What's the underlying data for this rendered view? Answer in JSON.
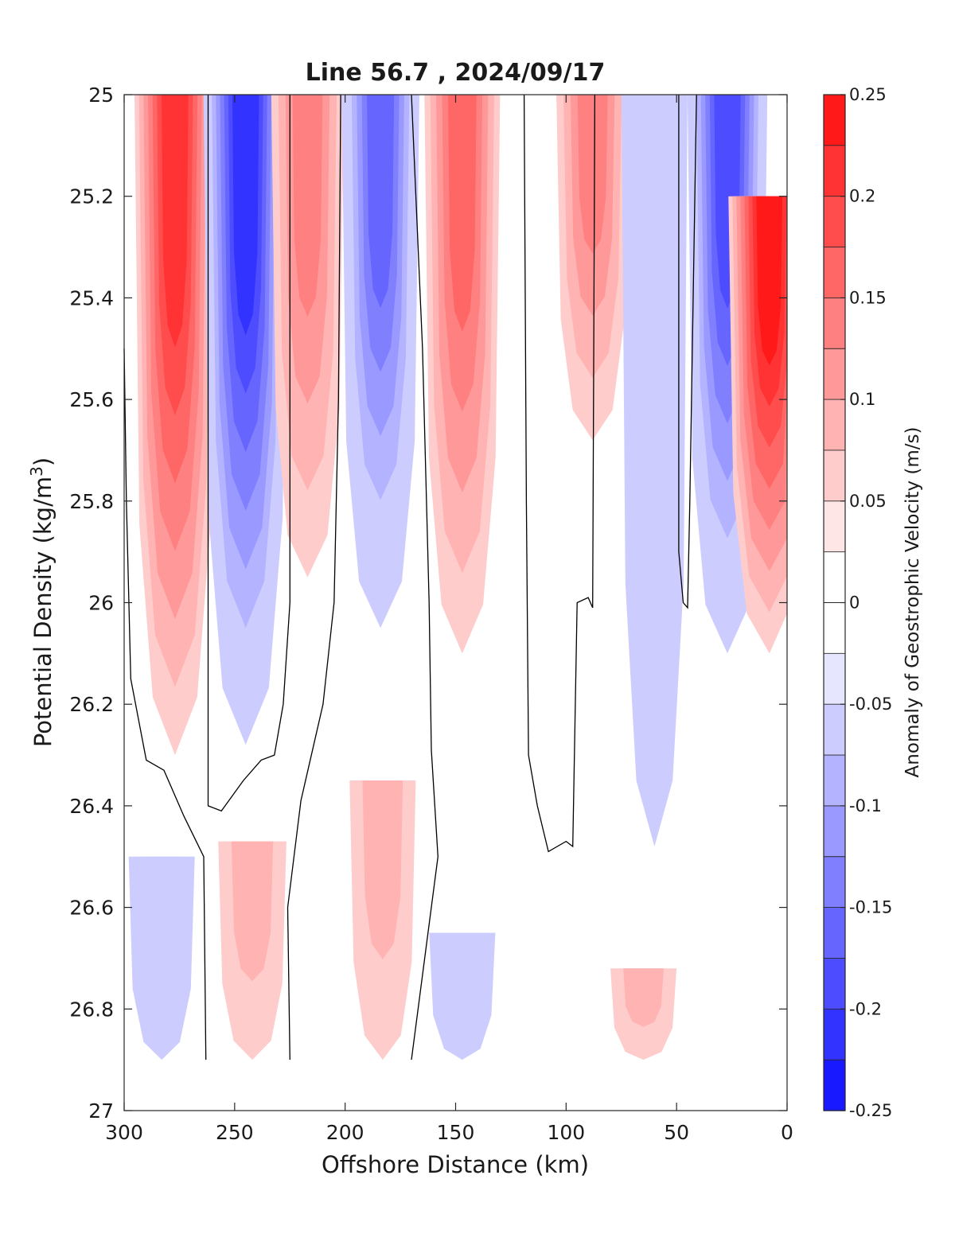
{
  "chart_data": {
    "type": "heatmap",
    "subtype": "filled-contour",
    "title": "Line 56.7 , 2024/09/17",
    "xlabel": "Offshore Distance (km)",
    "ylabel_text": "Potential Density (kg/m",
    "ylabel_sup": "3",
    "ylabel_close": ")",
    "xlim": [
      300,
      0
    ],
    "ylim": [
      25,
      27
    ],
    "y_reversed": true,
    "x_reversed": true,
    "xticks": [
      300,
      250,
      200,
      150,
      100,
      50,
      0
    ],
    "xtick_labels": [
      "300",
      "250",
      "200",
      "150",
      "100",
      "50",
      "0"
    ],
    "yticks": [
      25,
      25.2,
      25.4,
      25.6,
      25.8,
      26,
      26.2,
      26.4,
      26.6,
      26.8,
      27
    ],
    "ytick_labels": [
      "25",
      "25.2",
      "25.4",
      "25.6",
      "25.8",
      "26",
      "26.2",
      "26.4",
      "26.6",
      "26.8",
      "27"
    ],
    "grid": false,
    "colorbar": {
      "label": "Anomaly of Geostrophic Velocity (m/s)",
      "range": [
        -0.25,
        0.25
      ],
      "step": 0.025,
      "ticks": [
        0.25,
        0.2,
        0.15,
        0.1,
        0.05,
        0,
        -0.05,
        -0.1,
        -0.15,
        -0.2,
        -0.25
      ],
      "tick_labels": [
        "0.25",
        "0.2",
        "0.15",
        "0.1",
        "0.05",
        "0",
        "-0.05",
        "-0.1",
        "-0.15",
        "-0.2",
        "-0.25"
      ],
      "colormap": "blue-white-red",
      "positive_color": "#ff0000",
      "negative_color": "#0000ff",
      "zero_color": "#ffffff"
    },
    "cores": [
      {
        "x": 277,
        "ytop": 25.0,
        "ybot": 26.3,
        "peak": 0.18
      },
      {
        "x": 245,
        "ytop": 25.0,
        "ybot": 26.28,
        "peak": -0.21
      },
      {
        "x": 217,
        "ytop": 25.0,
        "ybot": 25.95,
        "peak": 0.1
      },
      {
        "x": 184,
        "ytop": 25.0,
        "ybot": 26.05,
        "peak": -0.15
      },
      {
        "x": 147,
        "ytop": 25.0,
        "ybot": 26.1,
        "peak": 0.13
      },
      {
        "x": 88,
        "ytop": 25.0,
        "ybot": 25.68,
        "peak": 0.1
      },
      {
        "x": 60,
        "ytop": 25.0,
        "ybot": 26.48,
        "peak": -0.04
      },
      {
        "x": 27,
        "ytop": 25.0,
        "ybot": 26.1,
        "peak": -0.17
      },
      {
        "x": 8,
        "ytop": 25.2,
        "ybot": 26.1,
        "peak": 0.19
      },
      {
        "x": 283,
        "ytop": 26.5,
        "ybot": 26.9,
        "peak": -0.04
      },
      {
        "x": 242,
        "ytop": 26.47,
        "ybot": 26.9,
        "peak": 0.06
      },
      {
        "x": 183,
        "ytop": 26.35,
        "ybot": 26.9,
        "peak": 0.04
      },
      {
        "x": 147,
        "ytop": 26.65,
        "ybot": 26.9,
        "peak": -0.04
      },
      {
        "x": 65,
        "ytop": 26.72,
        "ybot": 26.9,
        "peak": 0.04
      }
    ],
    "zero_contours": [
      [
        [
          300,
          25.5
        ],
        [
          299,
          25.8
        ],
        [
          297,
          26.15
        ],
        [
          290,
          26.31
        ],
        [
          282,
          26.33
        ],
        [
          273,
          26.42
        ],
        [
          264,
          26.5
        ],
        [
          263,
          26.9
        ]
      ],
      [
        [
          262,
          25.0
        ],
        [
          262,
          26.4
        ],
        [
          256,
          26.41
        ],
        [
          246,
          26.35
        ],
        [
          238,
          26.31
        ],
        [
          232,
          26.3
        ],
        [
          228,
          26.2
        ],
        [
          225,
          26.0
        ],
        [
          225,
          25.0
        ]
      ],
      [
        [
          202,
          25.0
        ],
        [
          203,
          25.6
        ],
        [
          205,
          26.0
        ],
        [
          210,
          26.2
        ],
        [
          220,
          26.39
        ],
        [
          226,
          26.6
        ],
        [
          225,
          26.9
        ]
      ],
      [
        [
          170,
          25.0
        ],
        [
          165,
          25.5
        ],
        [
          162,
          26.0
        ],
        [
          161,
          26.29
        ],
        [
          158,
          26.5
        ],
        [
          170,
          26.9
        ]
      ],
      [
        [
          119,
          25.0
        ],
        [
          118,
          25.8
        ],
        [
          117,
          26.3
        ],
        [
          113,
          26.4
        ],
        [
          108,
          26.49
        ],
        [
          100,
          26.47
        ],
        [
          97,
          26.48
        ],
        [
          95,
          26.0
        ],
        [
          90,
          25.99
        ],
        [
          88,
          26.01
        ],
        [
          87,
          25.0
        ]
      ],
      [
        [
          49,
          25.0
        ],
        [
          49,
          25.9
        ],
        [
          47,
          26.0
        ],
        [
          45,
          26.01
        ],
        [
          44,
          25.8
        ],
        [
          41,
          25.0
        ]
      ]
    ]
  }
}
